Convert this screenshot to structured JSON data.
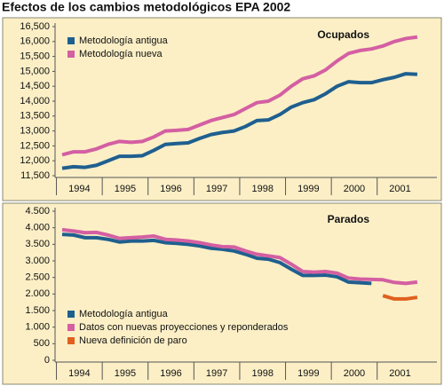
{
  "title": "Efectos de los cambios metodológicos EPA 2002",
  "chart_data": [
    {
      "type": "line",
      "annotation": "Ocupados",
      "categories": [
        "1994",
        null,
        null,
        null,
        "1995",
        null,
        null,
        null,
        "1996",
        null,
        null,
        null,
        "1997",
        null,
        null,
        null,
        "1998",
        null,
        null,
        null,
        "1999",
        null,
        null,
        null,
        "2000",
        null,
        null,
        null,
        "2001",
        null,
        null,
        null
      ],
      "series": [
        {
          "name": "Metodología antigua",
          "color": "#1f5f8f",
          "values": [
            11750,
            11800,
            11780,
            11850,
            12000,
            12150,
            12150,
            12170,
            12350,
            12550,
            12580,
            12600,
            12750,
            12880,
            12950,
            13000,
            13150,
            13350,
            13370,
            13550,
            13800,
            13950,
            14050,
            14250,
            14500,
            14650,
            14620,
            14620,
            14720,
            14800,
            14920,
            14900
          ]
        },
        {
          "name": "Metodología nueva",
          "color": "#d45fa2",
          "values": [
            12200,
            12300,
            12300,
            12400,
            12550,
            12650,
            12620,
            12650,
            12800,
            13000,
            13020,
            13050,
            13200,
            13350,
            13450,
            13550,
            13750,
            13950,
            14000,
            14200,
            14500,
            14750,
            14850,
            15050,
            15350,
            15600,
            15700,
            15750,
            15850,
            16000,
            16100,
            16150
          ]
        }
      ],
      "ylim": [
        11500,
        16500
      ],
      "yticks": [
        {
          "value": 11500,
          "label": "11,500"
        },
        {
          "value": 12000,
          "label": "12,000"
        },
        {
          "value": 12500,
          "label": "12,500"
        },
        {
          "value": 13000,
          "label": "13,000"
        },
        {
          "value": 13500,
          "label": "13,500"
        },
        {
          "value": 14000,
          "label": "14,000"
        },
        {
          "value": 14500,
          "label": "14,500"
        },
        {
          "value": 15000,
          "label": "15,000"
        },
        {
          "value": 15500,
          "label": "15,500"
        },
        {
          "value": 16000,
          "label": "16,000"
        },
        {
          "value": 16500,
          "label": "16,500"
        }
      ],
      "legend": "upper left"
    },
    {
      "type": "line",
      "annotation": "Parados",
      "categories": [
        "1994",
        null,
        null,
        null,
        "1995",
        null,
        null,
        null,
        "1996",
        null,
        null,
        null,
        "1997",
        null,
        null,
        null,
        "1998",
        null,
        null,
        null,
        "1999",
        null,
        null,
        null,
        "2000",
        null,
        null,
        null,
        "2001",
        null,
        null,
        null
      ],
      "series": [
        {
          "name": "Metodología antigua",
          "color": "#1f5f8f",
          "values": [
            3800,
            3780,
            3700,
            3700,
            3650,
            3570,
            3600,
            3600,
            3620,
            3550,
            3530,
            3500,
            3450,
            3380,
            3350,
            3300,
            3200,
            3080,
            3050,
            2950,
            2750,
            2560,
            2560,
            2570,
            2520,
            2360,
            2340,
            2320,
            null,
            null,
            null,
            null
          ]
        },
        {
          "name": "Datos con nuevas proyecciones y reponderados",
          "color": "#d45fa2",
          "values": [
            3940,
            3900,
            3850,
            3860,
            3780,
            3680,
            3700,
            3720,
            3750,
            3650,
            3630,
            3600,
            3550,
            3480,
            3430,
            3420,
            3300,
            3200,
            3150,
            3100,
            2900,
            2680,
            2660,
            2680,
            2630,
            2480,
            2450,
            2440,
            2430,
            2350,
            2320,
            2360
          ]
        },
        {
          "name": "Nueva definición de paro",
          "color": "#e0601e",
          "values": [
            null,
            null,
            null,
            null,
            null,
            null,
            null,
            null,
            null,
            null,
            null,
            null,
            null,
            null,
            null,
            null,
            null,
            null,
            null,
            null,
            null,
            null,
            null,
            null,
            null,
            null,
            null,
            null,
            1950,
            1850,
            1850,
            1900
          ]
        }
      ],
      "ylim": [
        0,
        4500
      ],
      "yticks": [
        0,
        500,
        {
          "value": 1000,
          "label": "1.000"
        },
        {
          "value": 1500,
          "label": "1.500"
        },
        {
          "value": 2000,
          "label": "2.000"
        },
        {
          "value": 2500,
          "label": "2.500"
        },
        {
          "value": 3000,
          "label": "3.000"
        },
        {
          "value": 3500,
          "label": "3.500"
        },
        {
          "value": 4000,
          "label": "4.000"
        },
        {
          "value": 4500,
          "label": "4.500"
        }
      ],
      "legend": "lower left"
    }
  ]
}
